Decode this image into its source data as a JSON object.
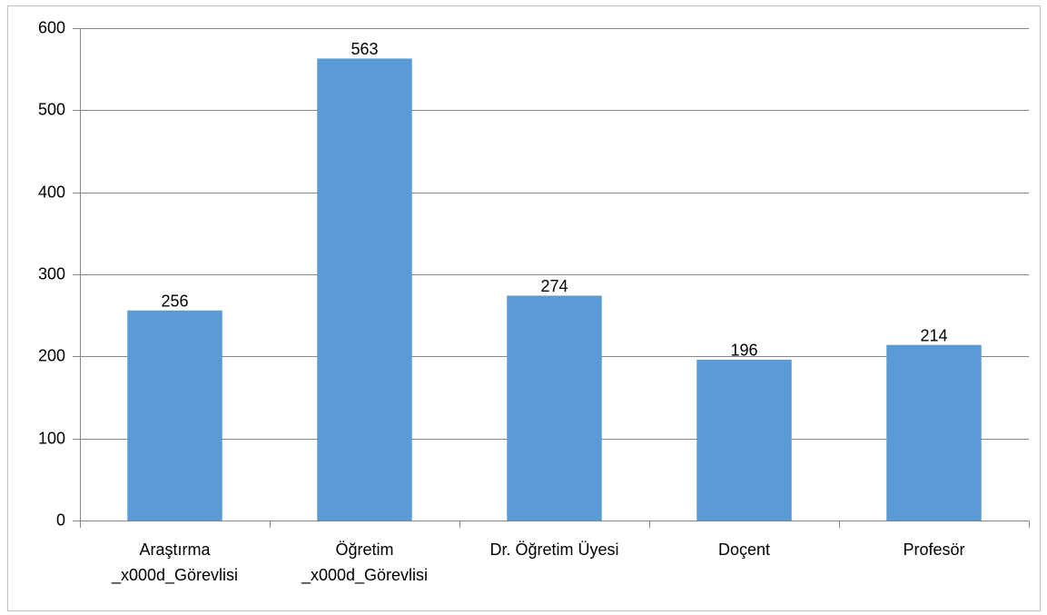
{
  "chart_data": {
    "type": "bar",
    "categories": [
      "Araştırma\n_x000d_Görevlisi",
      "Öğretim\n_x000d_Görevlisi",
      "Dr. Öğretim Üyesi",
      "Doçent",
      "Profesör"
    ],
    "values": [
      256,
      563,
      274,
      196,
      214
    ],
    "color": "#5b9bd5",
    "ylim": [
      0,
      600
    ],
    "yticks": [
      0,
      100,
      200,
      300,
      400,
      500,
      600
    ],
    "grid": true
  }
}
